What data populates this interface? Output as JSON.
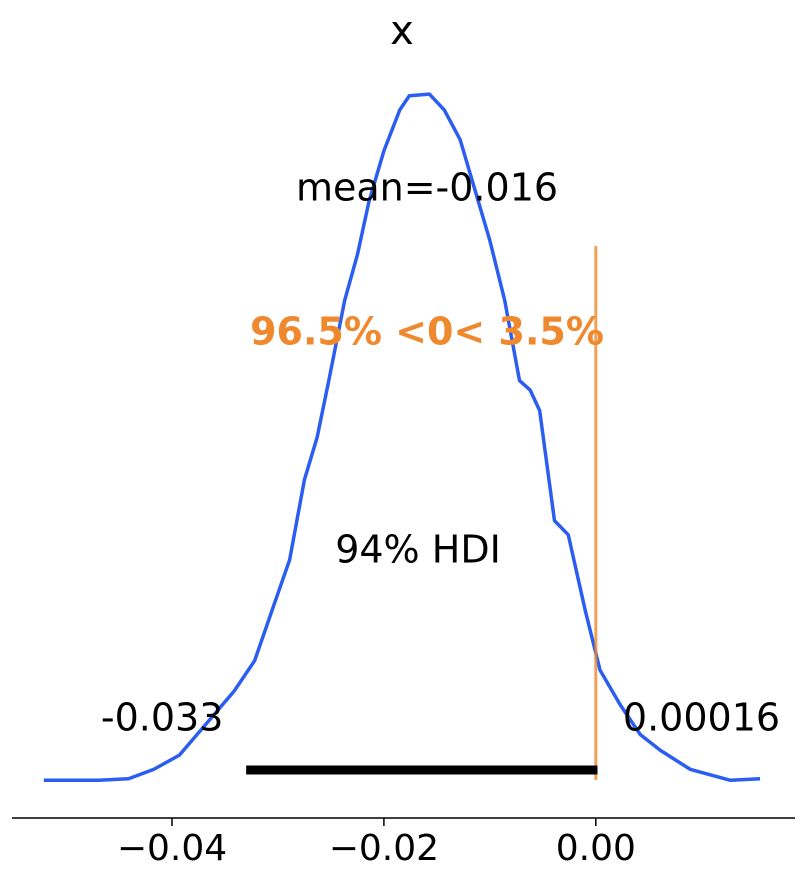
{
  "chart_data": {
    "type": "density",
    "title": "x",
    "x": [
      -0.0521,
      -0.0469,
      -0.0441,
      -0.0417,
      -0.0393,
      -0.0365,
      -0.0341,
      -0.0322,
      -0.0304,
      -0.0289,
      -0.0275,
      -0.0263,
      -0.0252,
      -0.0237,
      -0.0225,
      -0.0214,
      -0.02,
      -0.0185,
      -0.0176,
      -0.0157,
      -0.0143,
      -0.0128,
      -0.0114,
      -0.01,
      -0.0086,
      -0.0072,
      -0.0062,
      -0.0053,
      -0.0039,
      -0.0026,
      -0.001,
      0.0004,
      0.0023,
      0.0042,
      0.0061,
      0.0089,
      0.0127,
      0.0155
    ],
    "values": [
      0.3,
      0.3,
      0.4,
      1.0,
      1.9,
      4.1,
      6.0,
      7.9,
      11.4,
      14.3,
      19.4,
      22.1,
      25.7,
      30.8,
      33.7,
      37.1,
      40.3,
      42.9,
      43.8,
      43.9,
      42.9,
      41.0,
      37.8,
      34.6,
      30.8,
      25.7,
      25.1,
      23.8,
      16.8,
      15.9,
      11.1,
      7.3,
      5.1,
      3.2,
      2.2,
      1.0,
      0.3,
      0.4
    ],
    "color": "#2b5ef0",
    "mean_label": "mean=-0.016",
    "ref_value": 0,
    "ref_label": "96.5% <0< 3.5%",
    "ref_color": "#f0882e",
    "hdi_label": "94% HDI",
    "hdi": [
      -0.033,
      0.00016
    ],
    "hdi_labels": [
      "-0.033",
      "0.00016"
    ],
    "xlim": [
      -0.0551,
      0.0188
    ],
    "ylim": [
      0,
      45.5
    ],
    "xticks": [
      {
        "value": -0.04,
        "label": "−0.04"
      },
      {
        "value": -0.02,
        "label": "−0.02"
      },
      {
        "value": 0,
        "label": "0.00"
      }
    ]
  }
}
